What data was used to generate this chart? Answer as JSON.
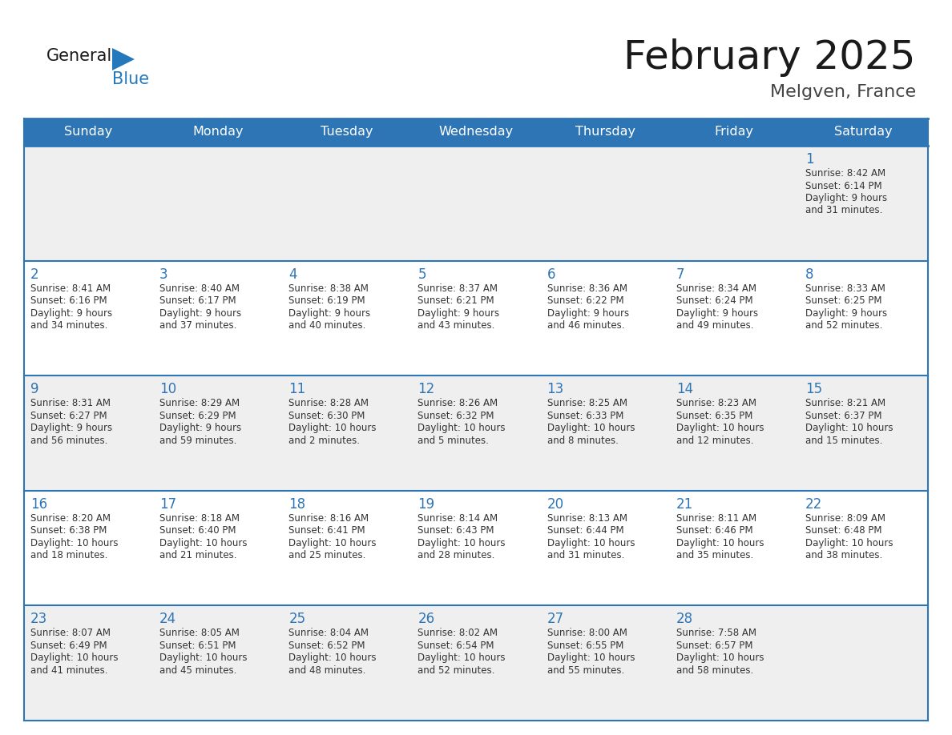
{
  "title": "February 2025",
  "subtitle": "Melgven, France",
  "header_bg": "#2E75B6",
  "header_text_color": "#FFFFFF",
  "cell_bg_odd": "#EFEFEF",
  "cell_bg_even": "#FFFFFF",
  "day_number_color": "#2E75B6",
  "text_color": "#333333",
  "border_color": "#2E75B6",
  "days_of_week": [
    "Sunday",
    "Monday",
    "Tuesday",
    "Wednesday",
    "Thursday",
    "Friday",
    "Saturday"
  ],
  "calendar_data": [
    [
      null,
      null,
      null,
      null,
      null,
      null,
      {
        "day": "1",
        "sunrise": "8:42 AM",
        "sunset": "6:14 PM",
        "daylight_h": "9 hours",
        "daylight_m": "31 minutes"
      }
    ],
    [
      {
        "day": "2",
        "sunrise": "8:41 AM",
        "sunset": "6:16 PM",
        "daylight_h": "9 hours",
        "daylight_m": "34 minutes"
      },
      {
        "day": "3",
        "sunrise": "8:40 AM",
        "sunset": "6:17 PM",
        "daylight_h": "9 hours",
        "daylight_m": "37 minutes"
      },
      {
        "day": "4",
        "sunrise": "8:38 AM",
        "sunset": "6:19 PM",
        "daylight_h": "9 hours",
        "daylight_m": "40 minutes"
      },
      {
        "day": "5",
        "sunrise": "8:37 AM",
        "sunset": "6:21 PM",
        "daylight_h": "9 hours",
        "daylight_m": "43 minutes"
      },
      {
        "day": "6",
        "sunrise": "8:36 AM",
        "sunset": "6:22 PM",
        "daylight_h": "9 hours",
        "daylight_m": "46 minutes"
      },
      {
        "day": "7",
        "sunrise": "8:34 AM",
        "sunset": "6:24 PM",
        "daylight_h": "9 hours",
        "daylight_m": "49 minutes"
      },
      {
        "day": "8",
        "sunrise": "8:33 AM",
        "sunset": "6:25 PM",
        "daylight_h": "9 hours",
        "daylight_m": "52 minutes"
      }
    ],
    [
      {
        "day": "9",
        "sunrise": "8:31 AM",
        "sunset": "6:27 PM",
        "daylight_h": "9 hours",
        "daylight_m": "56 minutes"
      },
      {
        "day": "10",
        "sunrise": "8:29 AM",
        "sunset": "6:29 PM",
        "daylight_h": "9 hours",
        "daylight_m": "59 minutes"
      },
      {
        "day": "11",
        "sunrise": "8:28 AM",
        "sunset": "6:30 PM",
        "daylight_h": "10 hours",
        "daylight_m": "2 minutes"
      },
      {
        "day": "12",
        "sunrise": "8:26 AM",
        "sunset": "6:32 PM",
        "daylight_h": "10 hours",
        "daylight_m": "5 minutes"
      },
      {
        "day": "13",
        "sunrise": "8:25 AM",
        "sunset": "6:33 PM",
        "daylight_h": "10 hours",
        "daylight_m": "8 minutes"
      },
      {
        "day": "14",
        "sunrise": "8:23 AM",
        "sunset": "6:35 PM",
        "daylight_h": "10 hours",
        "daylight_m": "12 minutes"
      },
      {
        "day": "15",
        "sunrise": "8:21 AM",
        "sunset": "6:37 PM",
        "daylight_h": "10 hours",
        "daylight_m": "15 minutes"
      }
    ],
    [
      {
        "day": "16",
        "sunrise": "8:20 AM",
        "sunset": "6:38 PM",
        "daylight_h": "10 hours",
        "daylight_m": "18 minutes"
      },
      {
        "day": "17",
        "sunrise": "8:18 AM",
        "sunset": "6:40 PM",
        "daylight_h": "10 hours",
        "daylight_m": "21 minutes"
      },
      {
        "day": "18",
        "sunrise": "8:16 AM",
        "sunset": "6:41 PM",
        "daylight_h": "10 hours",
        "daylight_m": "25 minutes"
      },
      {
        "day": "19",
        "sunrise": "8:14 AM",
        "sunset": "6:43 PM",
        "daylight_h": "10 hours",
        "daylight_m": "28 minutes"
      },
      {
        "day": "20",
        "sunrise": "8:13 AM",
        "sunset": "6:44 PM",
        "daylight_h": "10 hours",
        "daylight_m": "31 minutes"
      },
      {
        "day": "21",
        "sunrise": "8:11 AM",
        "sunset": "6:46 PM",
        "daylight_h": "10 hours",
        "daylight_m": "35 minutes"
      },
      {
        "day": "22",
        "sunrise": "8:09 AM",
        "sunset": "6:48 PM",
        "daylight_h": "10 hours",
        "daylight_m": "38 minutes"
      }
    ],
    [
      {
        "day": "23",
        "sunrise": "8:07 AM",
        "sunset": "6:49 PM",
        "daylight_h": "10 hours",
        "daylight_m": "41 minutes"
      },
      {
        "day": "24",
        "sunrise": "8:05 AM",
        "sunset": "6:51 PM",
        "daylight_h": "10 hours",
        "daylight_m": "45 minutes"
      },
      {
        "day": "25",
        "sunrise": "8:04 AM",
        "sunset": "6:52 PM",
        "daylight_h": "10 hours",
        "daylight_m": "48 minutes"
      },
      {
        "day": "26",
        "sunrise": "8:02 AM",
        "sunset": "6:54 PM",
        "daylight_h": "10 hours",
        "daylight_m": "52 minutes"
      },
      {
        "day": "27",
        "sunrise": "8:00 AM",
        "sunset": "6:55 PM",
        "daylight_h": "10 hours",
        "daylight_m": "55 minutes"
      },
      {
        "day": "28",
        "sunrise": "7:58 AM",
        "sunset": "6:57 PM",
        "daylight_h": "10 hours",
        "daylight_m": "58 minutes"
      },
      null
    ]
  ],
  "logo_color_general": "#1a1a1a",
  "logo_color_blue": "#2479BD",
  "logo_triangle_color": "#2479BD",
  "title_color": "#1a1a1a",
  "subtitle_color": "#444444"
}
